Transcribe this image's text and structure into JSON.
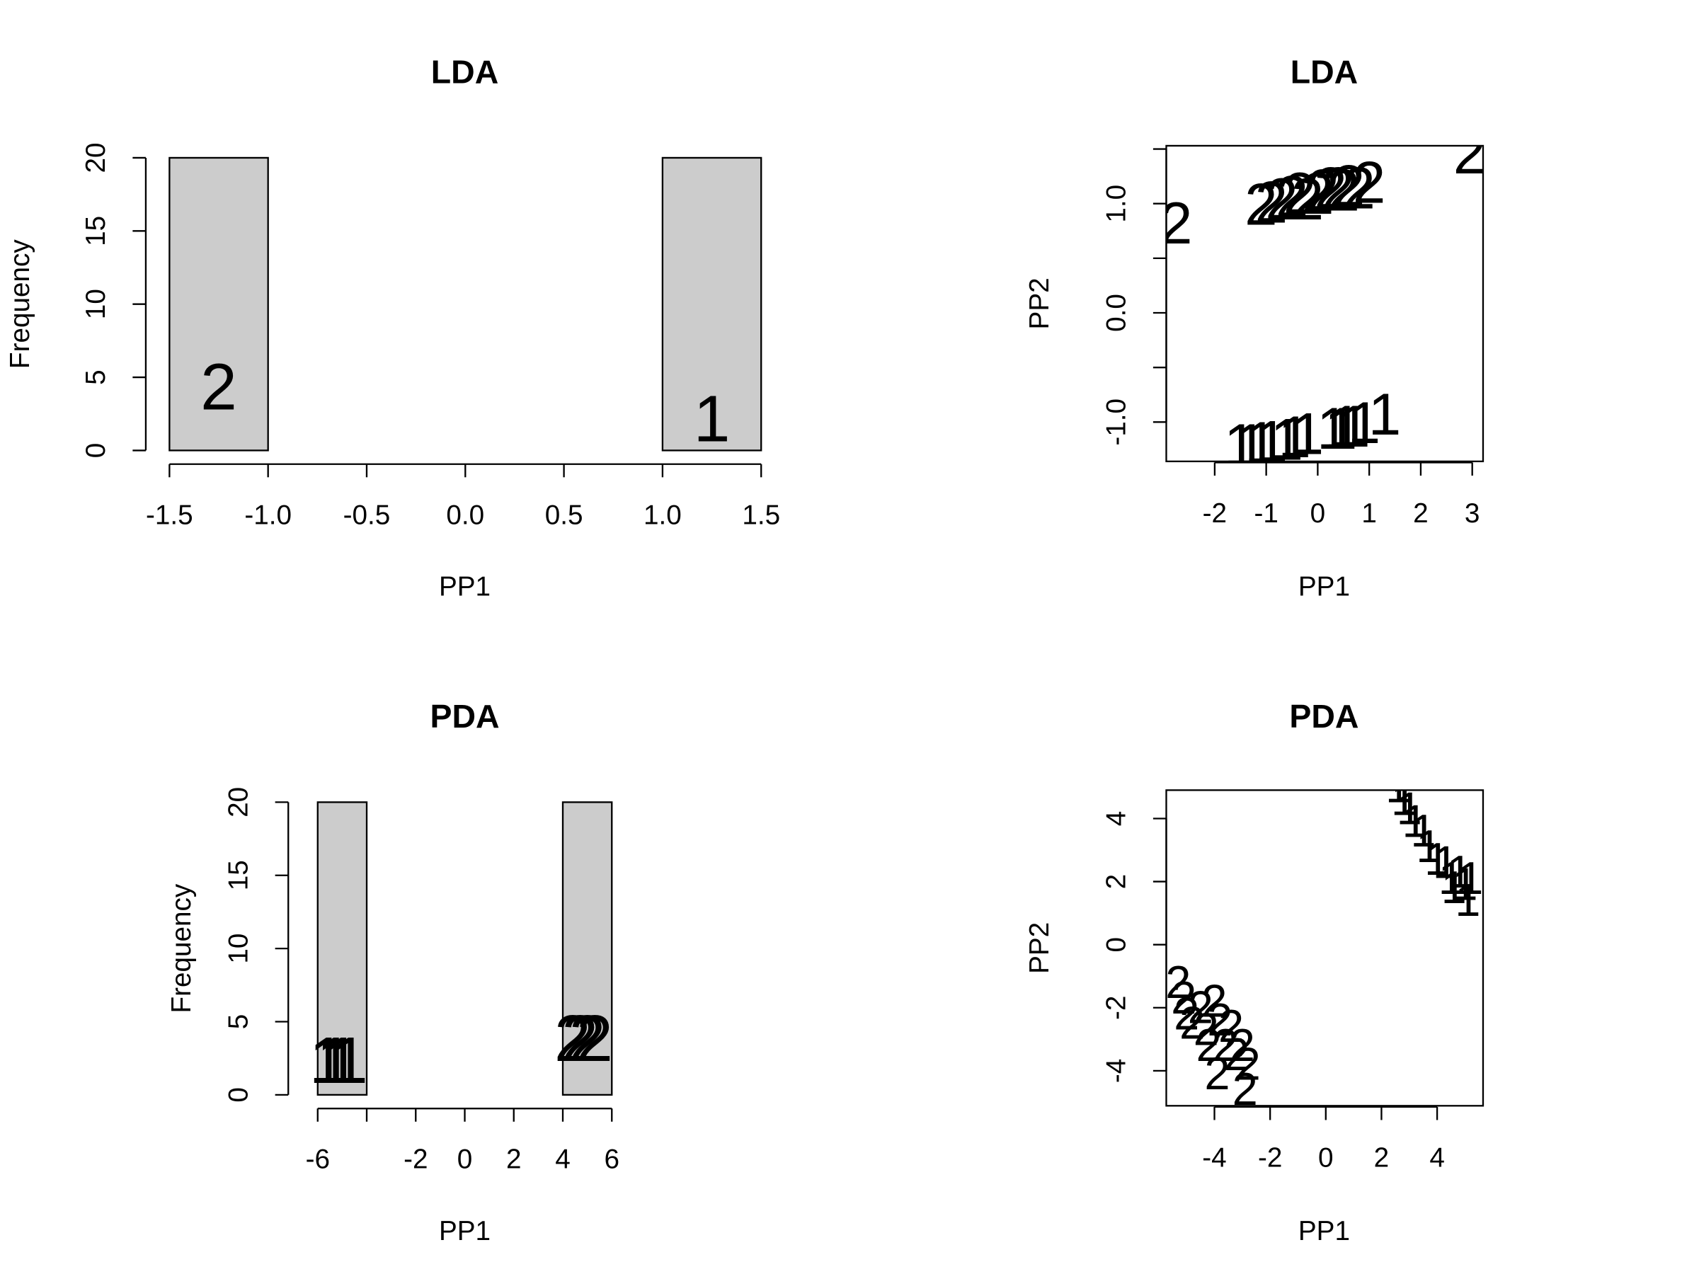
{
  "chart_data": [
    {
      "type": "histogram",
      "title": "LDA",
      "x_label": "PP1",
      "y_label": "Frequency",
      "bins": [
        -1.5,
        -1,
        -0.5,
        0,
        0.5,
        1,
        1.5
      ],
      "counts": [
        20,
        0,
        0,
        0,
        0,
        20
      ],
      "color": "#cccccc",
      "xlim": [
        -1.62,
        1.62
      ],
      "ylim": [
        -0.86,
        20.86
      ],
      "xticks": [
        -1.5,
        {
          "value": -1,
          "label": "-1.0"
        },
        -0.5,
        {
          "value": 0,
          "label": "0.0"
        },
        0.5,
        {
          "value": 1,
          "label": "1.0"
        },
        1.5
      ],
      "yticks": [
        0,
        5,
        10,
        15,
        20
      ],
      "annotations": [
        {
          "text": "2",
          "x": -1.25,
          "y": 4
        },
        {
          "text": "1",
          "x": 1.25,
          "y": 1.8
        }
      ]
    },
    {
      "type": "scatter",
      "title": "LDA",
      "x_label": "PP1",
      "y_label": "PP2",
      "xlim": [
        -2.94,
        3.21
      ],
      "ylim": [
        -1.36,
        1.53
      ],
      "xticks": [
        -2,
        -1,
        0,
        1,
        2,
        3
      ],
      "yticks": [
        {
          "value": -1,
          "label": "-1.0"
        },
        {
          "value": -0.5,
          "label": null
        },
        {
          "value": 0,
          "label": "0.0"
        },
        {
          "value": 0.5,
          "label": null
        },
        {
          "value": 1,
          "label": "1.0"
        },
        {
          "value": 1.5,
          "label": null
        }
      ],
      "series": [
        {
          "name": "1",
          "color": "#000000",
          "x": [
            -1.5,
            -1.3,
            -1.1,
            -0.9,
            -0.6,
            -0.45,
            -0.2,
            0.3,
            0.45,
            0.55,
            0.7,
            0.9,
            1.3
          ],
          "values": [
            -1.25,
            -1.25,
            -1.23,
            -1.22,
            -1.2,
            -1.18,
            -1.15,
            -1.1,
            -1.1,
            -1.08,
            -1.08,
            -1.05,
            -0.97
          ]
        },
        {
          "name": "2",
          "color": "#000000",
          "x": [
            -2.75,
            -1.1,
            -0.9,
            -0.7,
            -0.5,
            -0.35,
            -0.2,
            0,
            0.1,
            0.25,
            0.4,
            0.5,
            0.6,
            0.8,
            1.0,
            2.95
          ],
          "values": [
            0.78,
            0.95,
            0.97,
            1.0,
            1.02,
            1.05,
            1.0,
            1.05,
            1.08,
            1.1,
            1.1,
            1.08,
            1.12,
            1.1,
            1.15,
            1.42
          ]
        }
      ]
    },
    {
      "type": "histogram",
      "title": "PDA",
      "x_label": "PP1",
      "y_label": "Frequency",
      "bins": [
        -6,
        -4,
        -2,
        0,
        2,
        4,
        6
      ],
      "counts": [
        20,
        0,
        0,
        0,
        0,
        20
      ],
      "color": "#cccccc",
      "xlim": [
        -7.2,
        7.2
      ],
      "ylim": [
        -0.86,
        20.86
      ],
      "xticks": [
        -6,
        {
          "value": -4,
          "label": null
        },
        -2,
        0,
        2,
        4,
        6
      ],
      "yticks": [
        0,
        5,
        10,
        15,
        20
      ],
      "annotations": [
        {
          "text": "1",
          "x": -5.6,
          "y": 2
        },
        {
          "text": "1",
          "x": -5.3,
          "y": 2
        },
        {
          "text": "1",
          "x": -5.0,
          "y": 2
        },
        {
          "text": "1",
          "x": -4.7,
          "y": 2
        },
        {
          "text": "2",
          "x": 4.4,
          "y": 3.5
        },
        {
          "text": "2",
          "x": 4.7,
          "y": 3.5
        },
        {
          "text": "2",
          "x": 5.0,
          "y": 3.5
        },
        {
          "text": "2",
          "x": 5.3,
          "y": 3.5
        }
      ]
    },
    {
      "type": "scatter",
      "title": "PDA",
      "x_label": "PP1",
      "y_label": "PP2",
      "xlim": [
        -5.73,
        5.65
      ],
      "ylim": [
        -5.11,
        4.9
      ],
      "xticks": [
        -4,
        -2,
        0,
        2,
        4
      ],
      "yticks": [
        -4,
        -2,
        0,
        2,
        4
      ],
      "series": [
        {
          "name": "1",
          "color": "#000000",
          "x": [
            2.6,
            2.8,
            3.0,
            3.2,
            3.5,
            3.7,
            4.0,
            4.3,
            4.5,
            4.6,
            4.8,
            5.0,
            5.1,
            5.2
          ],
          "values": [
            4.9,
            4.5,
            4.2,
            3.8,
            3.5,
            3.0,
            2.6,
            2.5,
            2.0,
            1.7,
            2.2,
            1.8,
            1.3,
            2.0
          ]
        },
        {
          "name": "2",
          "color": "#000000",
          "x": [
            -5.3,
            -5.1,
            -5.0,
            -4.8,
            -4.5,
            -4.3,
            -4.0,
            -3.8,
            -3.6,
            -3.4,
            -3.2,
            -3.0,
            -2.8,
            -4.2,
            -3.9,
            -2.9
          ],
          "values": [
            -1.3,
            -1.8,
            -2.3,
            -2.6,
            -2.1,
            -2.8,
            -1.9,
            -2.5,
            -3.3,
            -2.7,
            -3.6,
            -3.3,
            -3.9,
            -3.3,
            -4.2,
            -4.7
          ]
        }
      ]
    }
  ]
}
